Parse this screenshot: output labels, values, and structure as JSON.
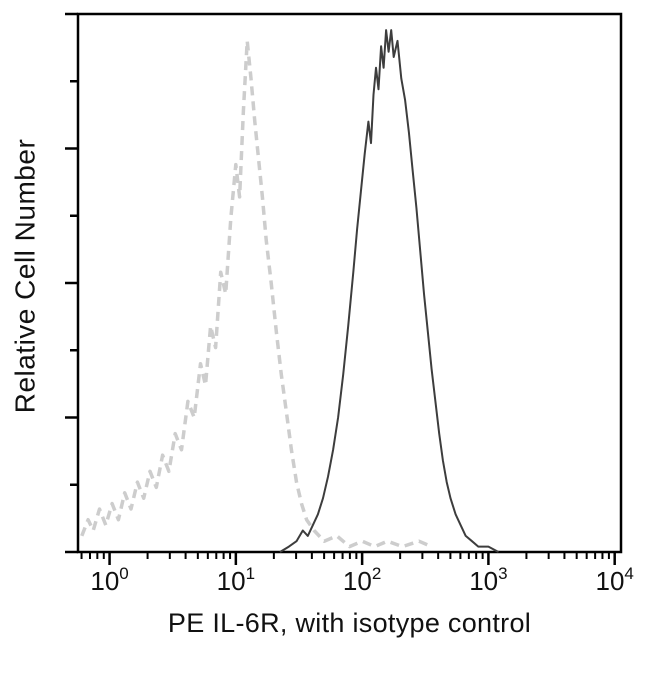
{
  "chart_data": {
    "type": "line",
    "subtype": "flow-cytometry-histogram",
    "title": "",
    "xlabel": "PE IL-6R, with isotype control",
    "ylabel": "Relative Cell Number",
    "x_scale": "log10",
    "xlim_log": [
      -0.25,
      4.05
    ],
    "ylim": [
      0,
      1
    ],
    "y_unit": "relative",
    "grid": false,
    "legend_position": "none",
    "y_tick_count": 9,
    "x_ticks": [
      {
        "base": "10",
        "exp": "0",
        "log": 0
      },
      {
        "base": "10",
        "exp": "1",
        "log": 1
      },
      {
        "base": "10",
        "exp": "2",
        "log": 2
      },
      {
        "base": "10",
        "exp": "3",
        "log": 3
      },
      {
        "base": "10",
        "exp": "4",
        "log": 4
      }
    ],
    "series": [
      {
        "name": "isotype control",
        "style": "dashed",
        "color": "#cdcdcd",
        "stroke_width": 3.5,
        "points": [
          [
            -0.22,
            0.03
          ],
          [
            -0.17,
            0.06
          ],
          [
            -0.13,
            0.04
          ],
          [
            -0.08,
            0.08
          ],
          [
            -0.03,
            0.05
          ],
          [
            0.02,
            0.09
          ],
          [
            0.07,
            0.06
          ],
          [
            0.12,
            0.11
          ],
          [
            0.17,
            0.08
          ],
          [
            0.22,
            0.13
          ],
          [
            0.27,
            0.1
          ],
          [
            0.32,
            0.15
          ],
          [
            0.37,
            0.12
          ],
          [
            0.42,
            0.18
          ],
          [
            0.47,
            0.15
          ],
          [
            0.52,
            0.22
          ],
          [
            0.57,
            0.19
          ],
          [
            0.62,
            0.28
          ],
          [
            0.67,
            0.25
          ],
          [
            0.72,
            0.35
          ],
          [
            0.76,
            0.31
          ],
          [
            0.8,
            0.42
          ],
          [
            0.84,
            0.38
          ],
          [
            0.88,
            0.52
          ],
          [
            0.92,
            0.48
          ],
          [
            0.96,
            0.62
          ],
          [
            1.0,
            0.72
          ],
          [
            1.03,
            0.66
          ],
          [
            1.06,
            0.82
          ],
          [
            1.09,
            0.95
          ],
          [
            1.12,
            0.88
          ],
          [
            1.15,
            0.8
          ],
          [
            1.18,
            0.73
          ],
          [
            1.21,
            0.66
          ],
          [
            1.24,
            0.58
          ],
          [
            1.28,
            0.5
          ],
          [
            1.32,
            0.41
          ],
          [
            1.36,
            0.33
          ],
          [
            1.4,
            0.26
          ],
          [
            1.44,
            0.19
          ],
          [
            1.48,
            0.13
          ],
          [
            1.52,
            0.09
          ],
          [
            1.56,
            0.06
          ],
          [
            1.62,
            0.04
          ],
          [
            1.7,
            0.02
          ],
          [
            1.8,
            0.03
          ],
          [
            1.9,
            0.01
          ],
          [
            2.0,
            0.02
          ],
          [
            2.1,
            0.01
          ],
          [
            2.2,
            0.02
          ],
          [
            2.32,
            0.01
          ],
          [
            2.45,
            0.02
          ],
          [
            2.55,
            0.01
          ]
        ]
      },
      {
        "name": "PE IL-6R",
        "style": "solid",
        "color": "#3d3d3d",
        "stroke_width": 2,
        "points": [
          [
            1.35,
            0.0
          ],
          [
            1.42,
            0.01
          ],
          [
            1.48,
            0.02
          ],
          [
            1.53,
            0.04
          ],
          [
            1.57,
            0.03
          ],
          [
            1.61,
            0.05
          ],
          [
            1.65,
            0.07
          ],
          [
            1.69,
            0.1
          ],
          [
            1.73,
            0.14
          ],
          [
            1.77,
            0.19
          ],
          [
            1.81,
            0.25
          ],
          [
            1.85,
            0.33
          ],
          [
            1.89,
            0.42
          ],
          [
            1.93,
            0.52
          ],
          [
            1.96,
            0.6
          ],
          [
            1.99,
            0.67
          ],
          [
            2.02,
            0.74
          ],
          [
            2.05,
            0.8
          ],
          [
            2.07,
            0.76
          ],
          [
            2.09,
            0.85
          ],
          [
            2.11,
            0.9
          ],
          [
            2.13,
            0.86
          ],
          [
            2.15,
            0.94
          ],
          [
            2.17,
            0.9
          ],
          [
            2.19,
            0.97
          ],
          [
            2.21,
            0.93
          ],
          [
            2.23,
            0.97
          ],
          [
            2.25,
            0.92
          ],
          [
            2.28,
            0.95
          ],
          [
            2.31,
            0.88
          ],
          [
            2.34,
            0.84
          ],
          [
            2.37,
            0.78
          ],
          [
            2.4,
            0.71
          ],
          [
            2.43,
            0.64
          ],
          [
            2.46,
            0.56
          ],
          [
            2.49,
            0.48
          ],
          [
            2.52,
            0.41
          ],
          [
            2.55,
            0.34
          ],
          [
            2.58,
            0.28
          ],
          [
            2.61,
            0.22
          ],
          [
            2.64,
            0.17
          ],
          [
            2.67,
            0.13
          ],
          [
            2.7,
            0.1
          ],
          [
            2.74,
            0.07
          ],
          [
            2.78,
            0.05
          ],
          [
            2.82,
            0.03
          ],
          [
            2.87,
            0.02
          ],
          [
            2.92,
            0.01
          ],
          [
            3.0,
            0.01
          ],
          [
            3.08,
            0.0
          ]
        ]
      }
    ],
    "axis_color": "#000000",
    "text_color": "#111111"
  }
}
